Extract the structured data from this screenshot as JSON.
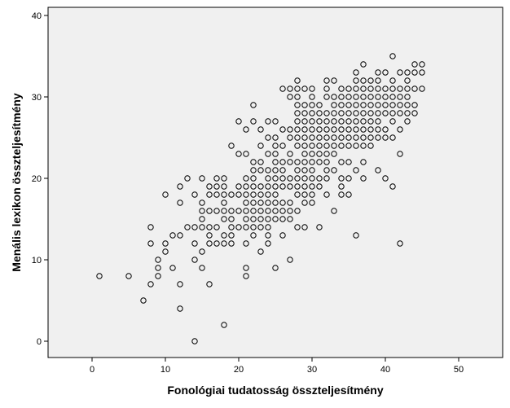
{
  "chart_data": {
    "type": "scatter",
    "title": "",
    "xlabel": "Fonológiai tudatosság összteljesítmény",
    "ylabel": "Menális lexikon összteljesítmény",
    "xlim": [
      -6,
      56
    ],
    "ylim": [
      -2,
      41
    ],
    "xticks": [
      0,
      10,
      20,
      30,
      40,
      50
    ],
    "yticks": [
      0,
      10,
      20,
      30,
      40
    ],
    "grid": false,
    "plot_background": "#f0f0f0",
    "marker": "open-circle",
    "marker_color": "#000000",
    "points": [
      [
        1,
        8
      ],
      [
        5,
        8
      ],
      [
        7,
        5
      ],
      [
        8,
        7
      ],
      [
        8,
        12
      ],
      [
        8,
        14
      ],
      [
        9,
        8
      ],
      [
        9,
        9
      ],
      [
        9,
        10
      ],
      [
        10,
        11
      ],
      [
        10,
        12
      ],
      [
        10,
        18
      ],
      [
        11,
        9
      ],
      [
        11,
        13
      ],
      [
        12,
        4
      ],
      [
        12,
        7
      ],
      [
        12,
        13
      ],
      [
        12,
        17
      ],
      [
        12,
        19
      ],
      [
        13,
        14
      ],
      [
        13,
        20
      ],
      [
        14,
        0
      ],
      [
        14,
        10
      ],
      [
        14,
        12
      ],
      [
        14,
        14
      ],
      [
        14,
        18
      ],
      [
        15,
        9
      ],
      [
        15,
        11
      ],
      [
        15,
        14
      ],
      [
        15,
        15
      ],
      [
        15,
        16
      ],
      [
        15,
        17
      ],
      [
        15,
        20
      ],
      [
        16,
        7
      ],
      [
        16,
        12
      ],
      [
        16,
        13
      ],
      [
        16,
        14
      ],
      [
        16,
        16
      ],
      [
        16,
        18
      ],
      [
        16,
        19
      ],
      [
        17,
        12
      ],
      [
        17,
        14
      ],
      [
        17,
        16
      ],
      [
        17,
        18
      ],
      [
        17,
        19
      ],
      [
        17,
        20
      ],
      [
        18,
        2
      ],
      [
        18,
        12
      ],
      [
        18,
        13
      ],
      [
        18,
        15
      ],
      [
        18,
        16
      ],
      [
        18,
        17
      ],
      [
        18,
        18
      ],
      [
        18,
        19
      ],
      [
        18,
        20
      ],
      [
        19,
        12
      ],
      [
        19,
        13
      ],
      [
        19,
        14
      ],
      [
        19,
        15
      ],
      [
        19,
        16
      ],
      [
        19,
        18
      ],
      [
        19,
        24
      ],
      [
        20,
        14
      ],
      [
        20,
        16
      ],
      [
        20,
        18
      ],
      [
        20,
        19
      ],
      [
        20,
        23
      ],
      [
        20,
        27
      ],
      [
        21,
        8
      ],
      [
        21,
        9
      ],
      [
        21,
        12
      ],
      [
        21,
        14
      ],
      [
        21,
        15
      ],
      [
        21,
        16
      ],
      [
        21,
        17
      ],
      [
        21,
        18
      ],
      [
        21,
        19
      ],
      [
        21,
        20
      ],
      [
        21,
        23
      ],
      [
        21,
        26
      ],
      [
        22,
        13
      ],
      [
        22,
        14
      ],
      [
        22,
        15
      ],
      [
        22,
        16
      ],
      [
        22,
        17
      ],
      [
        22,
        18
      ],
      [
        22,
        19
      ],
      [
        22,
        20
      ],
      [
        22,
        21
      ],
      [
        22,
        22
      ],
      [
        22,
        27
      ],
      [
        22,
        29
      ],
      [
        23,
        11
      ],
      [
        23,
        14
      ],
      [
        23,
        15
      ],
      [
        23,
        16
      ],
      [
        23,
        17
      ],
      [
        23,
        18
      ],
      [
        23,
        19
      ],
      [
        23,
        21
      ],
      [
        23,
        22
      ],
      [
        23,
        24
      ],
      [
        23,
        26
      ],
      [
        24,
        12
      ],
      [
        24,
        13
      ],
      [
        24,
        14
      ],
      [
        24,
        15
      ],
      [
        24,
        16
      ],
      [
        24,
        17
      ],
      [
        24,
        18
      ],
      [
        24,
        19
      ],
      [
        24,
        20
      ],
      [
        24,
        21
      ],
      [
        24,
        23
      ],
      [
        24,
        25
      ],
      [
        24,
        27
      ],
      [
        25,
        9
      ],
      [
        25,
        15
      ],
      [
        25,
        16
      ],
      [
        25,
        17
      ],
      [
        25,
        18
      ],
      [
        25,
        19
      ],
      [
        25,
        20
      ],
      [
        25,
        21
      ],
      [
        25,
        22
      ],
      [
        25,
        23
      ],
      [
        25,
        24
      ],
      [
        25,
        25
      ],
      [
        25,
        27
      ],
      [
        26,
        13
      ],
      [
        26,
        15
      ],
      [
        26,
        16
      ],
      [
        26,
        17
      ],
      [
        26,
        19
      ],
      [
        26,
        20
      ],
      [
        26,
        21
      ],
      [
        26,
        22
      ],
      [
        26,
        24
      ],
      [
        26,
        26
      ],
      [
        26,
        31
      ],
      [
        27,
        10
      ],
      [
        27,
        15
      ],
      [
        27,
        16
      ],
      [
        27,
        17
      ],
      [
        27,
        19
      ],
      [
        27,
        20
      ],
      [
        27,
        22
      ],
      [
        27,
        23
      ],
      [
        27,
        25
      ],
      [
        27,
        26
      ],
      [
        27,
        30
      ],
      [
        27,
        31
      ],
      [
        28,
        14
      ],
      [
        28,
        16
      ],
      [
        28,
        18
      ],
      [
        28,
        19
      ],
      [
        28,
        20
      ],
      [
        28,
        21
      ],
      [
        28,
        22
      ],
      [
        28,
        24
      ],
      [
        28,
        25
      ],
      [
        28,
        26
      ],
      [
        28,
        27
      ],
      [
        28,
        28
      ],
      [
        28,
        29
      ],
      [
        28,
        30
      ],
      [
        28,
        31
      ],
      [
        28,
        32
      ],
      [
        29,
        14
      ],
      [
        29,
        17
      ],
      [
        29,
        18
      ],
      [
        29,
        19
      ],
      [
        29,
        20
      ],
      [
        29,
        21
      ],
      [
        29,
        22
      ],
      [
        29,
        23
      ],
      [
        29,
        24
      ],
      [
        29,
        25
      ],
      [
        29,
        26
      ],
      [
        29,
        27
      ],
      [
        29,
        28
      ],
      [
        29,
        29
      ],
      [
        29,
        31
      ],
      [
        30,
        17
      ],
      [
        30,
        18
      ],
      [
        30,
        19
      ],
      [
        30,
        20
      ],
      [
        30,
        21
      ],
      [
        30,
        22
      ],
      [
        30,
        23
      ],
      [
        30,
        24
      ],
      [
        30,
        25
      ],
      [
        30,
        26
      ],
      [
        30,
        27
      ],
      [
        30,
        28
      ],
      [
        30,
        29
      ],
      [
        30,
        30
      ],
      [
        30,
        31
      ],
      [
        31,
        14
      ],
      [
        31,
        19
      ],
      [
        31,
        20
      ],
      [
        31,
        22
      ],
      [
        31,
        23
      ],
      [
        31,
        24
      ],
      [
        31,
        25
      ],
      [
        31,
        26
      ],
      [
        31,
        27
      ],
      [
        31,
        28
      ],
      [
        31,
        29
      ],
      [
        32,
        18
      ],
      [
        32,
        20
      ],
      [
        32,
        21
      ],
      [
        32,
        22
      ],
      [
        32,
        23
      ],
      [
        32,
        24
      ],
      [
        32,
        25
      ],
      [
        32,
        26
      ],
      [
        32,
        27
      ],
      [
        32,
        28
      ],
      [
        32,
        30
      ],
      [
        32,
        31
      ],
      [
        32,
        32
      ],
      [
        33,
        16
      ],
      [
        33,
        21
      ],
      [
        33,
        23
      ],
      [
        33,
        24
      ],
      [
        33,
        25
      ],
      [
        33,
        26
      ],
      [
        33,
        27
      ],
      [
        33,
        28
      ],
      [
        33,
        29
      ],
      [
        33,
        30
      ],
      [
        33,
        32
      ],
      [
        34,
        18
      ],
      [
        34,
        19
      ],
      [
        34,
        20
      ],
      [
        34,
        22
      ],
      [
        34,
        24
      ],
      [
        34,
        25
      ],
      [
        34,
        26
      ],
      [
        34,
        27
      ],
      [
        34,
        28
      ],
      [
        34,
        29
      ],
      [
        34,
        30
      ],
      [
        34,
        31
      ],
      [
        35,
        18
      ],
      [
        35,
        20
      ],
      [
        35,
        22
      ],
      [
        35,
        24
      ],
      [
        35,
        25
      ],
      [
        35,
        26
      ],
      [
        35,
        27
      ],
      [
        35,
        28
      ],
      [
        35,
        29
      ],
      [
        35,
        30
      ],
      [
        35,
        31
      ],
      [
        36,
        13
      ],
      [
        36,
        21
      ],
      [
        36,
        24
      ],
      [
        36,
        25
      ],
      [
        36,
        26
      ],
      [
        36,
        27
      ],
      [
        36,
        28
      ],
      [
        36,
        29
      ],
      [
        36,
        30
      ],
      [
        36,
        31
      ],
      [
        36,
        32
      ],
      [
        36,
        33
      ],
      [
        37,
        20
      ],
      [
        37,
        22
      ],
      [
        37,
        24
      ],
      [
        37,
        25
      ],
      [
        37,
        26
      ],
      [
        37,
        27
      ],
      [
        37,
        28
      ],
      [
        37,
        29
      ],
      [
        37,
        30
      ],
      [
        37,
        31
      ],
      [
        37,
        32
      ],
      [
        37,
        34
      ],
      [
        38,
        24
      ],
      [
        38,
        25
      ],
      [
        38,
        26
      ],
      [
        38,
        27
      ],
      [
        38,
        28
      ],
      [
        38,
        29
      ],
      [
        38,
        30
      ],
      [
        38,
        31
      ],
      [
        38,
        32
      ],
      [
        39,
        21
      ],
      [
        39,
        25
      ],
      [
        39,
        26
      ],
      [
        39,
        27
      ],
      [
        39,
        28
      ],
      [
        39,
        29
      ],
      [
        39,
        30
      ],
      [
        39,
        31
      ],
      [
        39,
        32
      ],
      [
        39,
        33
      ],
      [
        40,
        20
      ],
      [
        40,
        25
      ],
      [
        40,
        26
      ],
      [
        40,
        28
      ],
      [
        40,
        29
      ],
      [
        40,
        30
      ],
      [
        40,
        31
      ],
      [
        40,
        33
      ],
      [
        41,
        19
      ],
      [
        41,
        25
      ],
      [
        41,
        27
      ],
      [
        41,
        28
      ],
      [
        41,
        29
      ],
      [
        41,
        30
      ],
      [
        41,
        31
      ],
      [
        41,
        32
      ],
      [
        41,
        35
      ],
      [
        42,
        12
      ],
      [
        42,
        23
      ],
      [
        42,
        26
      ],
      [
        42,
        28
      ],
      [
        42,
        29
      ],
      [
        42,
        30
      ],
      [
        42,
        31
      ],
      [
        42,
        33
      ],
      [
        43,
        27
      ],
      [
        43,
        28
      ],
      [
        43,
        29
      ],
      [
        43,
        30
      ],
      [
        43,
        31
      ],
      [
        43,
        32
      ],
      [
        43,
        33
      ],
      [
        44,
        28
      ],
      [
        44,
        29
      ],
      [
        44,
        31
      ],
      [
        44,
        33
      ],
      [
        44,
        34
      ],
      [
        45,
        31
      ],
      [
        45,
        33
      ],
      [
        45,
        34
      ]
    ]
  }
}
